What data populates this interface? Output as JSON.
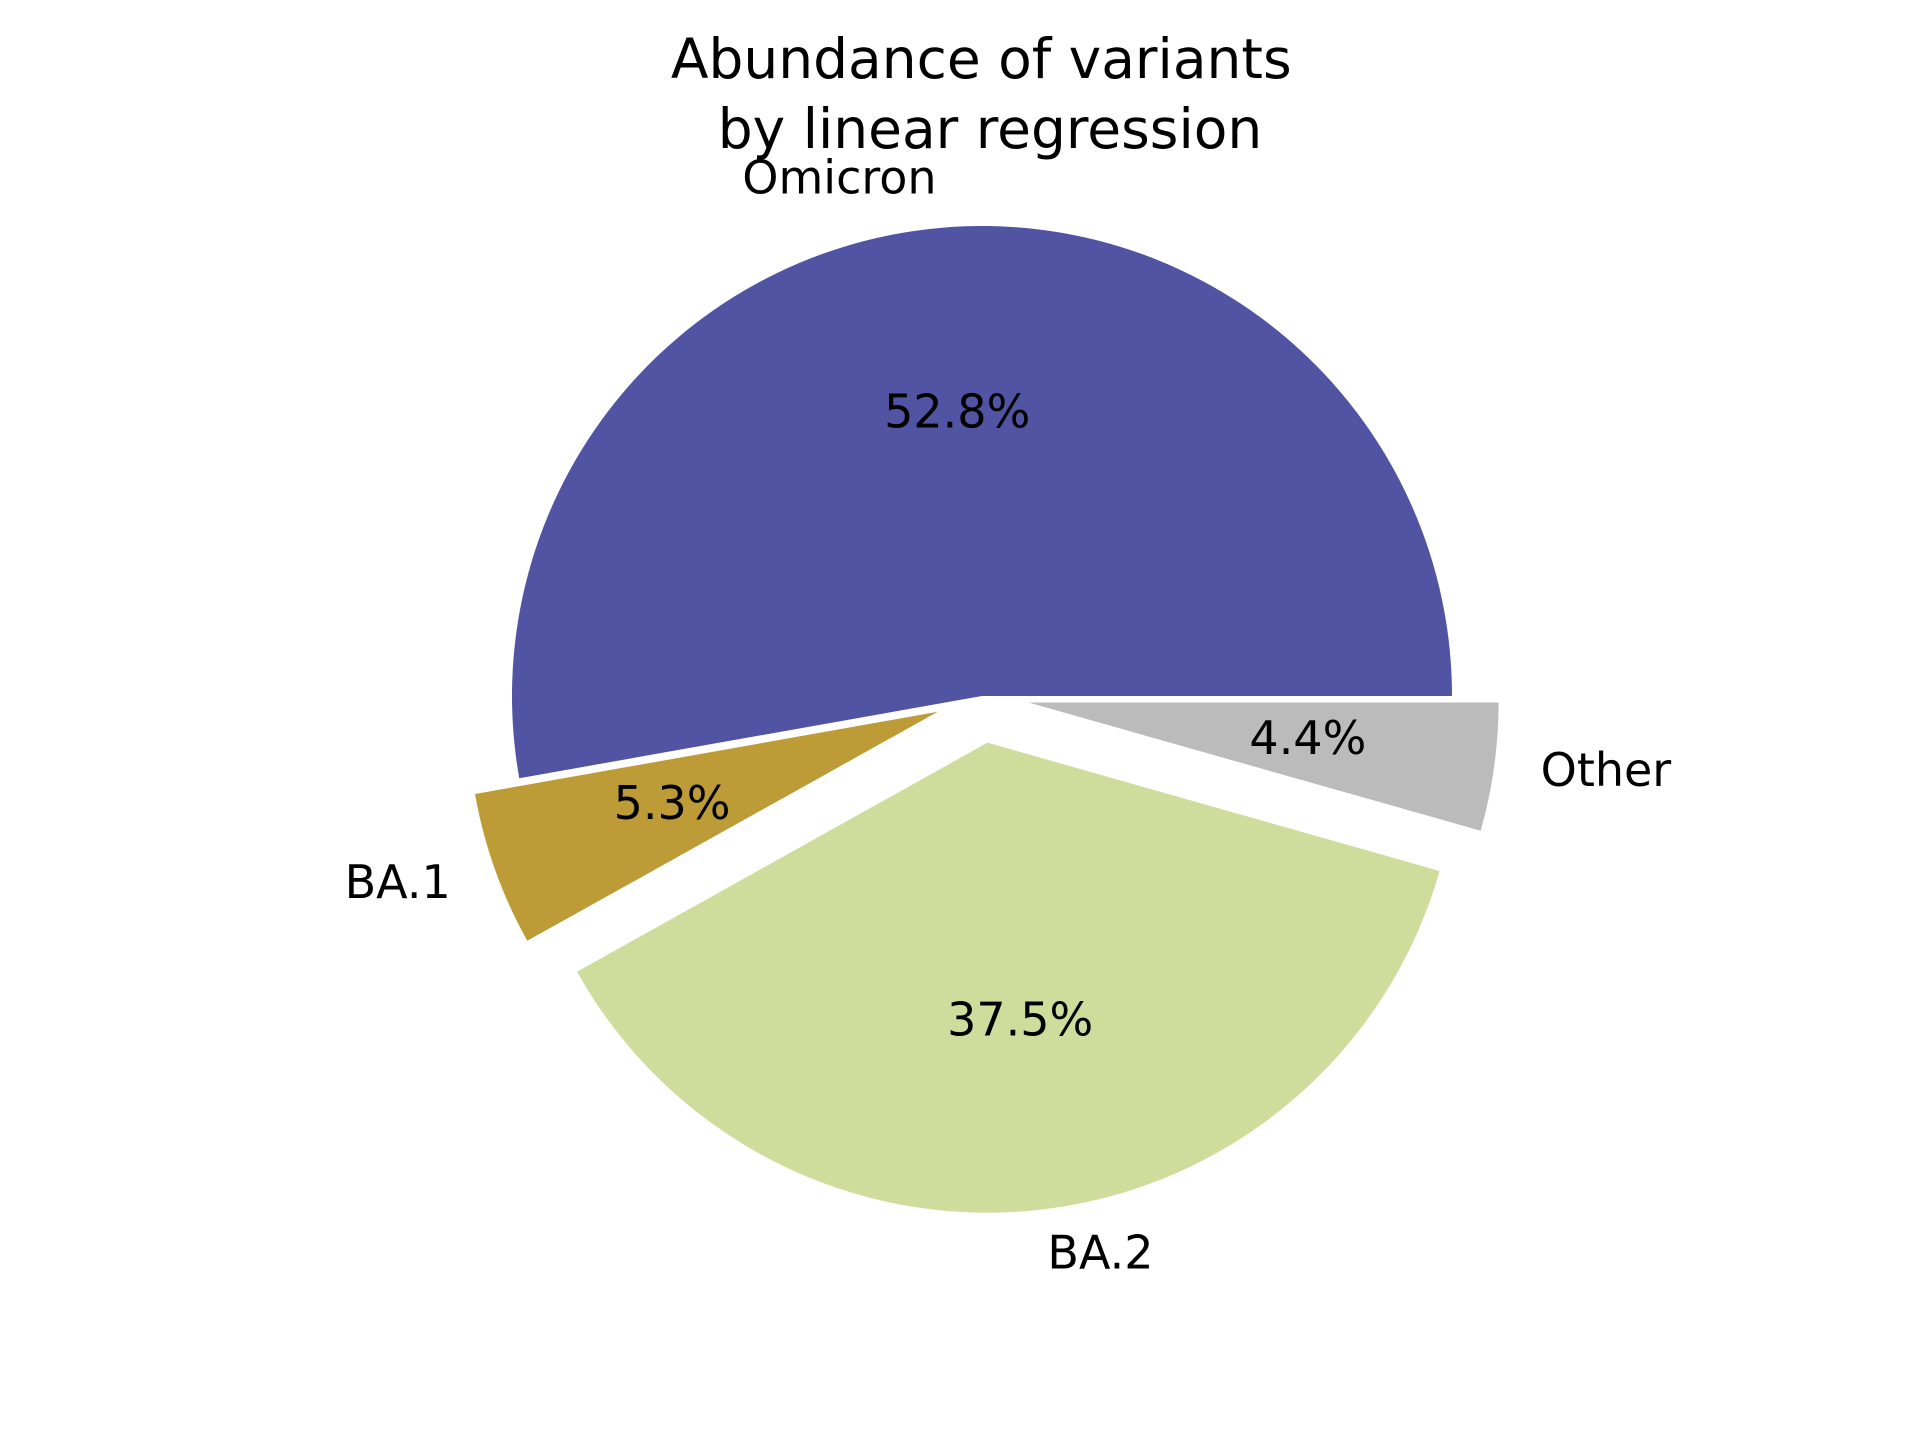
{
  "chart_data": {
    "type": "pie",
    "title": "Abundance of variants\nby linear regression",
    "title_lines": [
      "Abundance of variants",
      "by linear regression"
    ],
    "start_angle_deg": 0,
    "direction": "counterclockwise",
    "slices": [
      {
        "label": "Omicron",
        "value": 52.8,
        "pct_label": "52.8%",
        "color": "#5153a3",
        "exploded": false
      },
      {
        "label": "BA.1",
        "value": 5.3,
        "pct_label": "5.3%",
        "color": "#bd9c38",
        "exploded": true
      },
      {
        "label": "BA.2",
        "value": 37.5,
        "pct_label": "37.5%",
        "color": "#d0dc9c",
        "exploded": true
      },
      {
        "label": "Other",
        "value": 4.4,
        "pct_label": "4.4%",
        "color": "#bbbbbb",
        "exploded": true
      }
    ]
  }
}
